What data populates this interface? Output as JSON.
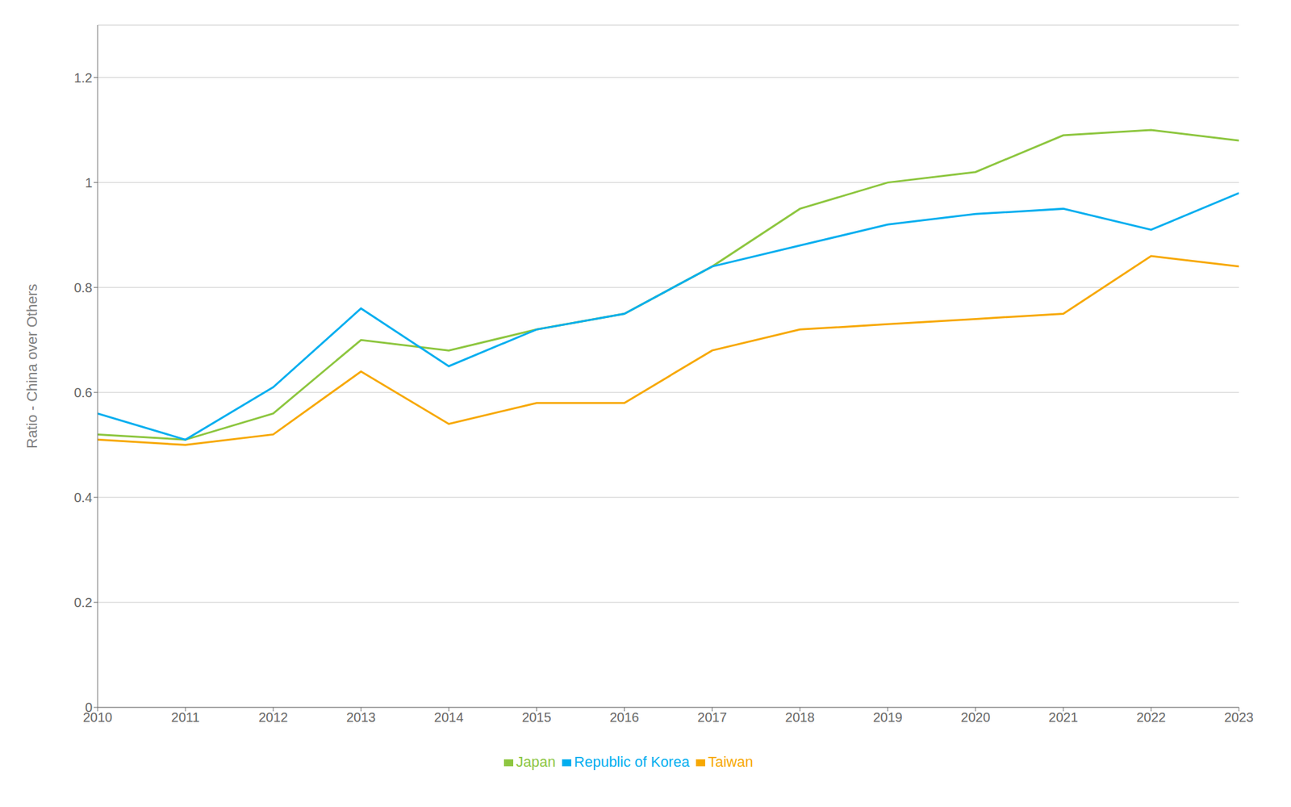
{
  "chart_data": {
    "type": "line",
    "y_label": "Ratio - China over Others",
    "x": [
      2010,
      2011,
      2012,
      2013,
      2014,
      2015,
      2016,
      2017,
      2018,
      2019,
      2020,
      2021,
      2022,
      2023
    ],
    "xlim": [
      2010,
      2023
    ],
    "xticks": [
      2010,
      2011,
      2012,
      2013,
      2014,
      2015,
      2016,
      2017,
      2018,
      2019,
      2020,
      2021,
      2022,
      2023
    ],
    "series": [
      {
        "name": "Japan",
        "color": "#8dc63f",
        "values": [
          0.52,
          0.51,
          0.56,
          0.7,
          0.68,
          0.72,
          0.75,
          0.84,
          0.95,
          1.0,
          1.02,
          1.09,
          1.1,
          1.08
        ]
      },
      {
        "name": "Republic of Korea",
        "color": "#00aeef",
        "values": [
          0.56,
          0.51,
          0.61,
          0.76,
          0.65,
          0.72,
          0.75,
          0.84,
          0.88,
          0.92,
          0.94,
          0.95,
          0.91,
          0.98
        ]
      },
      {
        "name": "Taiwan",
        "color": "#f7a800",
        "values": [
          0.51,
          0.5,
          0.52,
          0.64,
          0.54,
          0.58,
          0.58,
          0.68,
          0.72,
          0.73,
          0.74,
          0.75,
          0.86,
          0.84
        ]
      }
    ],
    "ylim": [
      0,
      1.3
    ],
    "yticks": [
      0,
      0.2,
      0.4,
      0.6,
      0.8,
      1,
      1.2
    ],
    "grid": true,
    "legend": "bottom"
  }
}
